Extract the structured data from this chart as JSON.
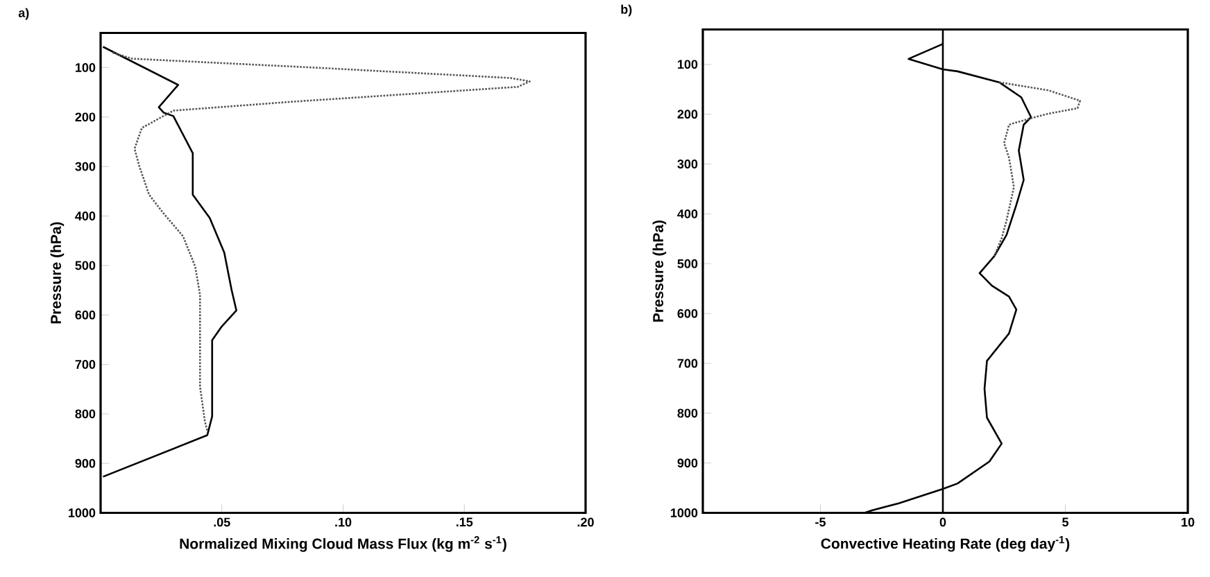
{
  "chart_data": [
    {
      "type": "line",
      "title": "a)",
      "xlabel": "Normalized Mixing Cloud Mass Flux (kg m$^{-2}$ s$^{-1}$)",
      "ylabel": "Pressure (hPa)",
      "xlim": [
        0,
        0.2
      ],
      "ylim": [
        1000,
        30
      ],
      "xticks": [
        {
          "value": 0.05,
          "label": ".05"
        },
        {
          "value": 0.1,
          "label": ".10"
        },
        {
          "value": 0.15,
          "label": ".15"
        },
        {
          "value": 0.2,
          "label": ".20"
        }
      ],
      "yticks": [
        100,
        200,
        300,
        400,
        500,
        600,
        700,
        800,
        900,
        1000
      ],
      "series": [
        {
          "color": "#000000",
          "line_style": "solid",
          "x": [
            0.001,
            0.032,
            0.024,
            0.026,
            0.03,
            0.038,
            0.038,
            0.045,
            0.051,
            0.054,
            0.056,
            0.05,
            0.046,
            0.046,
            0.044,
            0.001
          ],
          "values": [
            58,
            135,
            180,
            191,
            198,
            273,
            357,
            404,
            474,
            549,
            591,
            623,
            651,
            805,
            843,
            927
          ]
        },
        {
          "color": "#555555",
          "line_style": "dotted",
          "x": [
            0.005,
            0.013,
            0.088,
            0.169,
            0.177,
            0.172,
            0.079,
            0.03,
            0.017,
            0.014,
            0.016,
            0.02,
            0.026,
            0.034,
            0.039,
            0.041,
            0.041,
            0.043,
            0.044
          ],
          "values": [
            70,
            82,
            100,
            121,
            128,
            139,
            169,
            187,
            222,
            264,
            300,
            357,
            395,
            441,
            502,
            559,
            745,
            815,
            834
          ]
        }
      ]
    },
    {
      "type": "line",
      "title": "b)",
      "xlabel": "Convective Heating Rate (deg day$^{-1}$)",
      "ylabel": "Pressure (hPa)",
      "xlim": [
        -9.8,
        10
      ],
      "ylim": [
        1000,
        30
      ],
      "xticks": [
        -5,
        0,
        5,
        10
      ],
      "yticks": [
        100,
        200,
        300,
        400,
        500,
        600,
        700,
        800,
        900,
        1000
      ],
      "ref_lines": [
        {
          "axis": "x",
          "value": 0,
          "color": "#000000"
        }
      ],
      "series": [
        {
          "color": "#000000",
          "line_style": "solid",
          "x": [
            0,
            -1.4,
            0,
            0.6,
            2.3,
            3.2,
            3.6,
            3.3,
            3.1,
            3.3,
            3.0,
            2.6,
            2.1,
            1.5,
            2.0,
            2.7,
            3.0,
            2.7,
            1.8,
            1.7,
            1.8,
            2.4,
            1.9,
            0.6,
            0,
            -1.8,
            -2.9,
            -3.2
          ],
          "values": [
            59,
            89,
            110,
            114,
            136,
            166,
            206,
            221,
            273,
            332,
            382,
            442,
            485,
            519,
            544,
            566,
            592,
            640,
            695,
            751,
            809,
            861,
            897,
            941,
            952,
            981,
            995,
            1000
          ]
        },
        {
          "color": "#555555",
          "line_style": "dotted",
          "x": [
            2.3,
            4.3,
            5.6,
            5.5,
            4.3,
            3.6,
            2.7,
            2.5,
            2.7,
            2.9,
            2.6,
            2.4,
            2.1
          ],
          "values": [
            136,
            152,
            173,
            188,
            199,
            208,
            221,
            258,
            287,
            346,
            413,
            449,
            485
          ]
        }
      ]
    }
  ]
}
